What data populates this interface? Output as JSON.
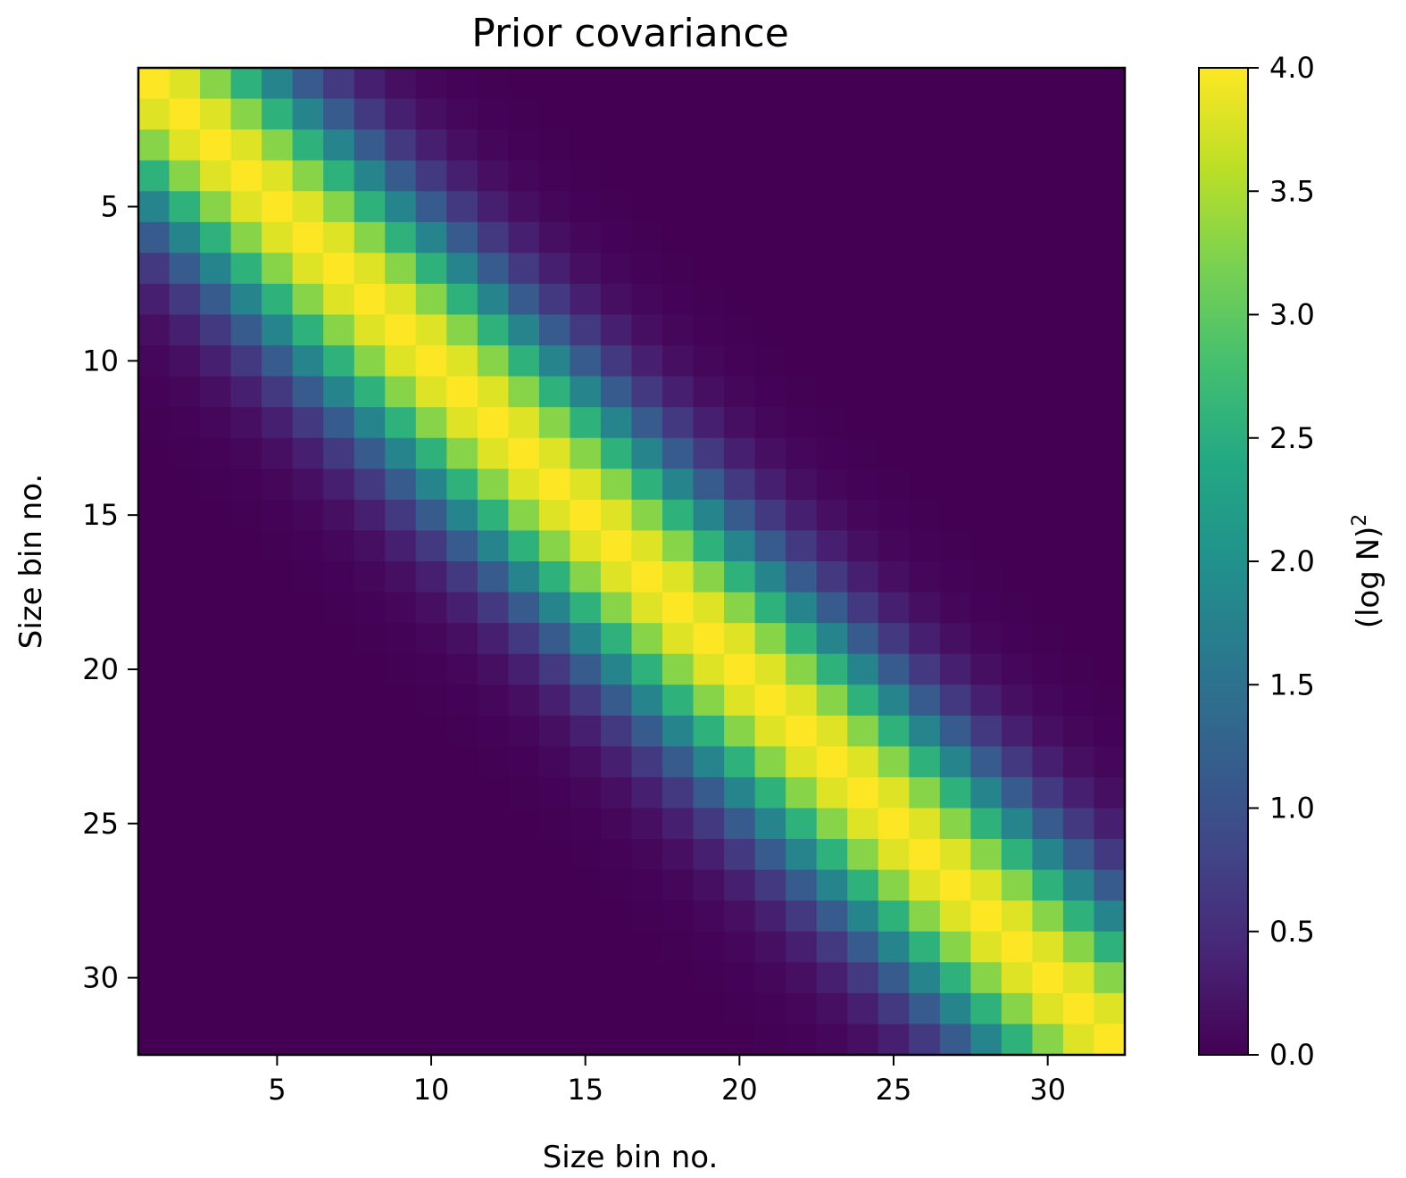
{
  "chart_data": {
    "type": "heatmap",
    "title": "Prior covariance",
    "xlabel": "Size bin no.",
    "ylabel": "Size bin no.",
    "n_bins": 32,
    "matrix_model": "value(i,j) = 4.0 * exp(-(i-j)^2 / 20)",
    "peak_value": 4.0,
    "correlation_scale": 20,
    "x_ticks": [
      5,
      10,
      15,
      20,
      25,
      30
    ],
    "y_ticks": [
      5,
      10,
      15,
      20,
      25,
      30
    ],
    "xlim": [
      0.5,
      32.5
    ],
    "ylim": [
      32.5,
      0.5
    ],
    "colorbar": {
      "label_base": "(log N)",
      "label_sup": "2",
      "min": 0.0,
      "max": 4.0,
      "ticks": [
        0.0,
        0.5,
        1.0,
        1.5,
        2.0,
        2.5,
        3.0,
        3.5,
        4.0
      ],
      "tick_labels": [
        "0.0",
        "0.5",
        "1.0",
        "1.5",
        "2.0",
        "2.5",
        "3.0",
        "3.5",
        "4.0"
      ]
    },
    "colormap": "viridis"
  }
}
